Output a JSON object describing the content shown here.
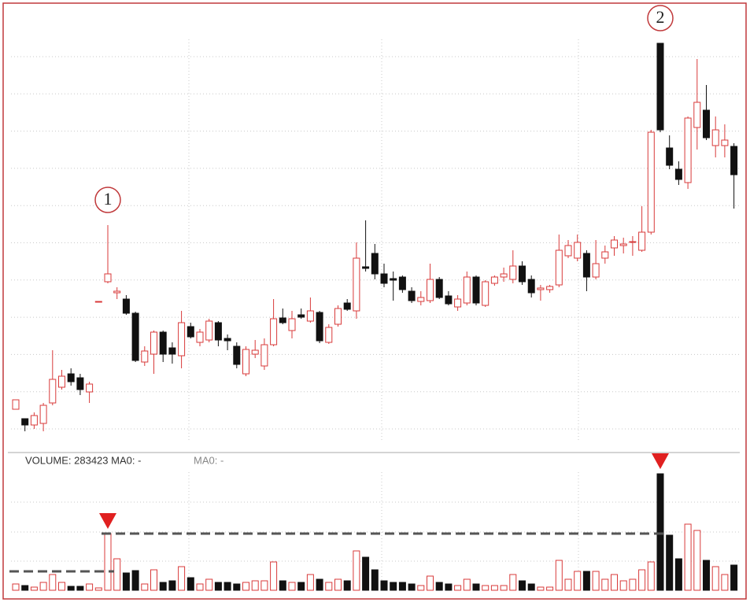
{
  "chart_data": {
    "type": "candlestick",
    "colors": {
      "up": "#d83a3a",
      "down": "#111111"
    },
    "ylim": [
      0,
      112
    ],
    "open": [
      9.6,
      7.2,
      5.6,
      6,
      11.2,
      15.2,
      18.6,
      17.6,
      14,
      37,
      42,
      39.2,
      37.6,
      34,
      21.6,
      23.6,
      29.2,
      25.2,
      23.2,
      30.6,
      26.6,
      27.2,
      31.6,
      27.6,
      25.6,
      18.6,
      23.6,
      20.6,
      26,
      32.8,
      29.6,
      33.6,
      32,
      34.2,
      26.6,
      31.2,
      36.6,
      34.6,
      45.8,
      49.2,
      44,
      42.8,
      43.2,
      39.6,
      37,
      37.2,
      42.6,
      38.4,
      35.6,
      36.6,
      43.2,
      36,
      41.6,
      43.2,
      42.6,
      46,
      42.6,
      40,
      40,
      41.2,
      48.6,
      48,
      49.2,
      43.2,
      48,
      50.6,
      51.2,
      52,
      50,
      54.6,
      102.6,
      76,
      70.6,
      67.2,
      81.2,
      85.6,
      76.6,
      76.6,
      76.4
    ],
    "close": [
      12,
      5.6,
      8,
      10.6,
      17.2,
      18,
      16.6,
      14.6,
      16,
      37,
      44,
      39.6,
      34,
      22,
      24.4,
      29.2,
      23.6,
      23.6,
      31.6,
      28,
      29.2,
      32,
      27.2,
      27,
      21,
      24.8,
      24.6,
      26,
      32.6,
      31.6,
      32.6,
      33,
      34.6,
      27,
      30.4,
      35.2,
      35,
      48,
      45.4,
      44,
      41.6,
      42.4,
      40,
      37.2,
      38,
      42.6,
      38,
      36.4,
      37.6,
      43.2,
      36.6,
      42,
      43.2,
      44,
      46,
      42,
      39.2,
      40.4,
      40.8,
      50,
      51.2,
      52,
      43.2,
      46.6,
      49.6,
      52.6,
      51.6,
      52.2,
      54.6,
      80,
      80.6,
      71.6,
      68,
      83.6,
      87.6,
      78.6,
      80.6,
      78,
      69.2
    ],
    "high": [
      12,
      7.2,
      8.8,
      11.2,
      24.6,
      19.6,
      20,
      18.6,
      16.6,
      37,
      56.4,
      40.6,
      38.6,
      34.4,
      25.6,
      29.6,
      29.6,
      26.6,
      34.6,
      31.6,
      30,
      32.6,
      32,
      28.6,
      26.6,
      25.6,
      27.2,
      27.6,
      37.6,
      35.2,
      34.6,
      35.2,
      38,
      34.6,
      31.2,
      36,
      37.6,
      52,
      57.6,
      51.6,
      46.6,
      44.6,
      43.6,
      40.6,
      39.6,
      46.6,
      43.2,
      39.6,
      38.6,
      44.6,
      43.6,
      42.4,
      43.6,
      45.6,
      50,
      47.2,
      43.6,
      41.2,
      41.2,
      54,
      52.6,
      54,
      50,
      52.6,
      51.2,
      53.6,
      53.2,
      53.6,
      61.2,
      80.6,
      102.6,
      79.2,
      72.6,
      84,
      98.6,
      92,
      84,
      82,
      77.2
    ],
    "low": [
      9.6,
      4,
      4.6,
      4,
      10.6,
      14.6,
      15.6,
      13.2,
      11.2,
      37,
      41.6,
      37.6,
      33.6,
      21.6,
      20.6,
      18.6,
      21.6,
      21.2,
      20,
      27.6,
      25.6,
      26.6,
      25.6,
      24.6,
      20,
      18,
      22.6,
      19.6,
      25.6,
      31.2,
      27.6,
      32.6,
      31.6,
      26.4,
      26.2,
      30.6,
      34.6,
      32.6,
      44.6,
      42.6,
      40.6,
      37.2,
      39.2,
      36.6,
      36,
      36.6,
      37.6,
      36,
      34.6,
      36,
      36,
      35.6,
      41,
      42,
      41.6,
      41.2,
      38,
      37.2,
      39.2,
      40.6,
      48,
      47.2,
      39.6,
      42.6,
      46.6,
      48.6,
      49.2,
      48.6,
      49.6,
      54,
      80,
      70.6,
      66.6,
      65.6,
      75.6,
      78,
      73.6,
      73.6,
      60.6
    ],
    "volume": [
      8,
      6,
      4,
      10,
      20,
      10,
      5,
      5,
      8,
      3,
      72,
      40,
      22,
      25,
      8,
      26,
      10,
      12,
      30,
      16,
      8,
      14,
      10,
      10,
      8,
      10,
      12,
      12,
      36,
      12,
      10,
      10,
      20,
      14,
      10,
      14,
      12,
      50,
      42,
      26,
      12,
      10,
      10,
      8,
      6,
      18,
      10,
      8,
      6,
      14,
      8,
      6,
      6,
      6,
      20,
      12,
      8,
      4,
      4,
      38,
      14,
      24,
      24,
      24,
      14,
      20,
      12,
      14,
      26,
      36,
      148,
      70,
      40,
      84,
      76,
      38,
      30,
      20,
      32
    ],
    "volume_ylim": [
      0,
      150
    ],
    "volume_label": "VOLUME: 283423 MA0: -",
    "ma_label": "MA0: -",
    "annotations": [
      {
        "label": "1",
        "index": 10
      },
      {
        "label": "2",
        "index": 70
      }
    ],
    "reference_lines": [
      {
        "value": 24,
        "from": 0,
        "to": 10
      },
      {
        "value": 72,
        "from": 10,
        "to": 70
      }
    ]
  }
}
